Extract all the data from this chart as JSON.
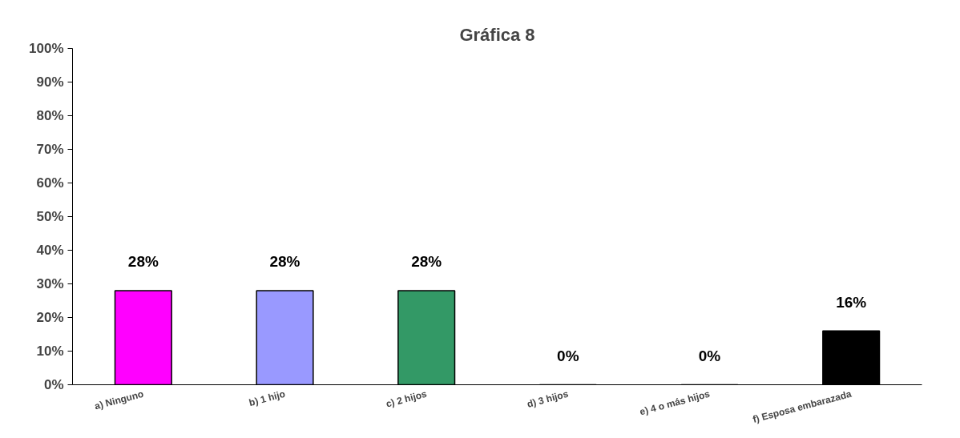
{
  "chart_data": {
    "type": "bar",
    "title": "Gráfica 8",
    "categories": [
      "a) Ninguno",
      "b) 1 hijo",
      "c) 2 hijos",
      "d) 3 hijos",
      "e) 4 o más hijos",
      "f) Esposa embarazada"
    ],
    "values": [
      28,
      28,
      28,
      0,
      0,
      16
    ],
    "colors": [
      "#ff00ff",
      "#9999ff",
      "#339966",
      "#000000",
      "#000000",
      "#000000"
    ],
    "value_labels": [
      "28%",
      "28%",
      "28%",
      "0%",
      "0%",
      "16%"
    ],
    "ylim": [
      0,
      100
    ],
    "yticks": [
      {
        "value": 0,
        "label": "0%"
      },
      {
        "value": 10,
        "label": "10%"
      },
      {
        "value": 20,
        "label": "20%"
      },
      {
        "value": 30,
        "label": "30%"
      },
      {
        "value": 40,
        "label": "40%"
      },
      {
        "value": 50,
        "label": "50%"
      },
      {
        "value": 60,
        "label": "60%"
      },
      {
        "value": 70,
        "label": "70%"
      },
      {
        "value": 80,
        "label": "80%"
      },
      {
        "value": 90,
        "label": "90%"
      },
      {
        "value": 100,
        "label": "100%"
      }
    ],
    "grid": false
  }
}
